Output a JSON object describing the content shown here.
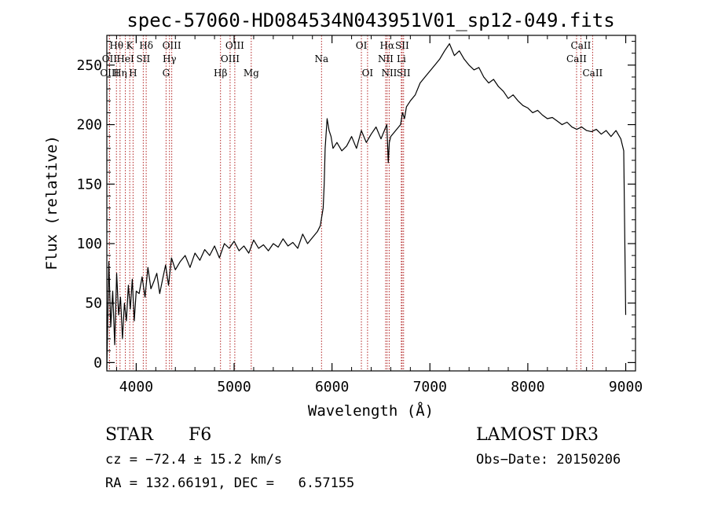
{
  "chart_data": {
    "type": "line",
    "title": "spec-57060-HD084534N043951V01_sp12-049.fits",
    "xlabel": "Wavelength (Å)",
    "ylabel": "Flux (relative)",
    "xlim": [
      3700,
      9100
    ],
    "ylim": [
      -7,
      275
    ],
    "xticks": [
      4000,
      5000,
      6000,
      7000,
      8000,
      9000
    ],
    "yticks": [
      0,
      50,
      100,
      150,
      200,
      250
    ],
    "xtick_labels": [
      "4000",
      "5000",
      "6000",
      "7000",
      "8000",
      "9000"
    ],
    "ytick_labels": [
      "0",
      "50",
      "100",
      "150",
      "200",
      "250"
    ],
    "line_color": "#000000",
    "marker_color": "#b22222",
    "series": [
      {
        "name": "flux",
        "x": [
          3700,
          3720,
          3740,
          3760,
          3780,
          3800,
          3820,
          3840,
          3860,
          3880,
          3900,
          3920,
          3940,
          3960,
          3980,
          4000,
          4030,
          4060,
          4090,
          4120,
          4150,
          4180,
          4210,
          4240,
          4270,
          4300,
          4330,
          4360,
          4400,
          4450,
          4500,
          4550,
          4600,
          4650,
          4700,
          4750,
          4800,
          4850,
          4900,
          4950,
          5000,
          5050,
          5100,
          5150,
          5200,
          5250,
          5300,
          5350,
          5400,
          5450,
          5500,
          5550,
          5600,
          5650,
          5700,
          5750,
          5800,
          5850,
          5880,
          5900,
          5910,
          5920,
          5930,
          5950,
          5970,
          5990,
          6010,
          6050,
          6100,
          6150,
          6200,
          6250,
          6300,
          6350,
          6400,
          6450,
          6500,
          6540,
          6560,
          6575,
          6585,
          6600,
          6650,
          6700,
          6720,
          6740,
          6760,
          6800,
          6850,
          6900,
          6950,
          7000,
          7050,
          7100,
          7150,
          7200,
          7250,
          7300,
          7350,
          7400,
          7450,
          7500,
          7550,
          7600,
          7650,
          7700,
          7750,
          7800,
          7850,
          7900,
          7950,
          8000,
          8050,
          8100,
          8150,
          8200,
          8250,
          8300,
          8350,
          8400,
          8450,
          8500,
          8550,
          8600,
          8650,
          8700,
          8750,
          8800,
          8850,
          8900,
          8950,
          8980,
          9000
        ],
        "y": [
          -5,
          85,
          30,
          60,
          15,
          75,
          40,
          55,
          20,
          50,
          35,
          65,
          45,
          70,
          35,
          60,
          58,
          72,
          55,
          80,
          62,
          68,
          75,
          58,
          70,
          82,
          65,
          88,
          78,
          85,
          90,
          80,
          92,
          86,
          95,
          90,
          98,
          88,
          100,
          96,
          102,
          94,
          98,
          92,
          103,
          96,
          99,
          94,
          100,
          97,
          104,
          98,
          101,
          96,
          108,
          100,
          105,
          110,
          115,
          125,
          130,
          150,
          180,
          205,
          195,
          190,
          180,
          185,
          178,
          182,
          190,
          180,
          195,
          185,
          192,
          198,
          188,
          196,
          200,
          168,
          185,
          190,
          195,
          200,
          210,
          205,
          215,
          220,
          225,
          235,
          240,
          245,
          250,
          255,
          262,
          268,
          258,
          262,
          255,
          250,
          246,
          248,
          240,
          235,
          238,
          232,
          228,
          222,
          225,
          220,
          216,
          214,
          210,
          212,
          208,
          205,
          206,
          203,
          200,
          202,
          198,
          196,
          198,
          195,
          194,
          196,
          192,
          195,
          190,
          195,
          188,
          178,
          40
        ]
      }
    ],
    "line_markers": [
      {
        "label": "Hθ",
        "wl": 3798,
        "row": 0
      },
      {
        "label": "OII",
        "wl": 3727,
        "row": 1
      },
      {
        "label": "OIII",
        "wl": 3727,
        "row": 2
      },
      {
        "label": "K",
        "wl": 3934,
        "row": 0
      },
      {
        "label": "HeI",
        "wl": 3889,
        "row": 1
      },
      {
        "label": "Hη",
        "wl": 3835,
        "row": 2
      },
      {
        "label": "Hδ",
        "wl": 4102,
        "row": 0
      },
      {
        "label": "SII",
        "wl": 4072,
        "row": 1
      },
      {
        "label": "H",
        "wl": 3968,
        "row": 2
      },
      {
        "label": "OIII",
        "wl": 4363,
        "row": 0
      },
      {
        "label": "Hγ",
        "wl": 4340,
        "row": 1
      },
      {
        "label": "G",
        "wl": 4305,
        "row": 2
      },
      {
        "label": "OIII",
        "wl": 5007,
        "row": 0
      },
      {
        "label": "OIII",
        "wl": 4959,
        "row": 1
      },
      {
        "label": "Hβ",
        "wl": 4861,
        "row": 2
      },
      {
        "label": "Mg",
        "wl": 5175,
        "row": 2
      },
      {
        "label": "Na",
        "wl": 5893,
        "row": 1
      },
      {
        "label": "OI",
        "wl": 6300,
        "row": 0
      },
      {
        "label": "OI",
        "wl": 6363,
        "row": 2
      },
      {
        "label": "Hα",
        "wl": 6563,
        "row": 0
      },
      {
        "label": "SII",
        "wl": 6716,
        "row": 0
      },
      {
        "label": "NII",
        "wl": 6548,
        "row": 1
      },
      {
        "label": "Li",
        "wl": 6708,
        "row": 1
      },
      {
        "label": "NII",
        "wl": 6584,
        "row": 2
      },
      {
        "label": "SII",
        "wl": 6731,
        "row": 2
      },
      {
        "label": "CaII",
        "wl": 8542,
        "row": 0
      },
      {
        "label": "CaII",
        "wl": 8498,
        "row": 1
      },
      {
        "label": "CaII",
        "wl": 8662,
        "row": 2
      }
    ]
  },
  "info": {
    "object_class": "STAR",
    "subclass": "F6",
    "redshift": "cz = −72.4 ± 15.2 km/s",
    "coords": "RA = 132.66191, DEC =   6.57155",
    "survey": "LAMOST DR3",
    "obs_date": "Obs−Date: 20150206"
  }
}
